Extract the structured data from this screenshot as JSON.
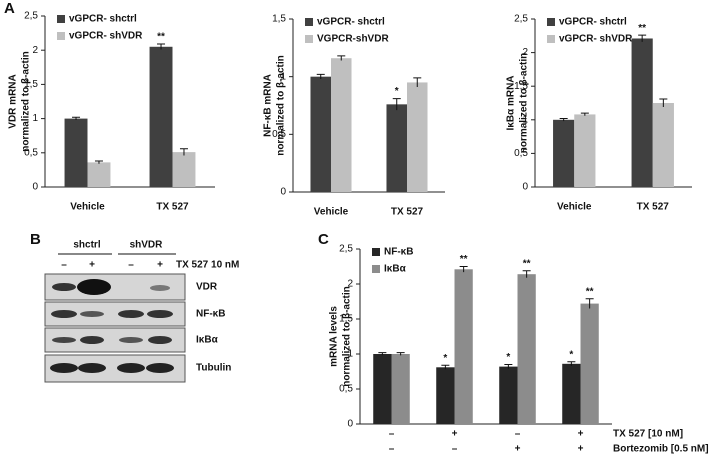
{
  "panel_labels": [
    "A",
    "B",
    "C"
  ],
  "blot": {
    "groups": [
      "shctrl",
      "shVDR"
    ],
    "lanes": [
      "–",
      "+",
      "–",
      "+"
    ],
    "treatment": "TX 527 10 nM",
    "rows": [
      "VDR",
      "NF-κB",
      "IκBα",
      "Tubulin"
    ]
  },
  "chart_data": [
    {
      "type": "bar",
      "y_label": [
        "VDR  mRNA",
        "normalized to β-actin"
      ],
      "categories": [
        "Vehicle",
        "TX 527"
      ],
      "series": [
        {
          "name": "vGPCR- shctrl",
          "color": "#404040",
          "values": [
            1.0,
            2.05
          ],
          "errors": [
            0.02,
            0.04
          ],
          "annotations": [
            null,
            "**"
          ]
        },
        {
          "name": "vGPCR- shVDR",
          "color": "#bfbfbf",
          "values": [
            0.36,
            0.51
          ],
          "errors": [
            0.02,
            0.05
          ],
          "annotations": [
            null,
            null
          ]
        }
      ],
      "ylim": [
        0,
        2.5
      ],
      "yticks": [
        0,
        {
          "value": 0.5,
          "label": "0,5"
        },
        1,
        {
          "value": 1.5,
          "label": "1,5"
        },
        2,
        {
          "value": 2.5,
          "label": "2,5"
        }
      ],
      "grid": false,
      "legend": "top-left"
    },
    {
      "type": "bar",
      "y_label": [
        "NF-κB  mRNA",
        "normalized to β-actin"
      ],
      "categories": [
        "Vehicle",
        "TX 527"
      ],
      "series": [
        {
          "name": "vGPCR- shctrl",
          "color": "#404040",
          "values": [
            1.0,
            0.76
          ],
          "errors": [
            0.02,
            0.05
          ],
          "annotations": [
            null,
            "*"
          ]
        },
        {
          "name": "VGPCR-shVDR",
          "color": "#bfbfbf",
          "values": [
            1.16,
            0.95
          ],
          "errors": [
            0.02,
            0.04
          ],
          "annotations": [
            null,
            null
          ]
        }
      ],
      "ylim": [
        0,
        1.5
      ],
      "yticks": [
        0,
        {
          "value": 0.5,
          "label": "0,5"
        },
        1,
        {
          "value": 1.5,
          "label": "1,5"
        }
      ],
      "grid": false,
      "legend": "top-left"
    },
    {
      "type": "bar",
      "y_label": [
        "IκBα  mRNA",
        "normalized to β-actin"
      ],
      "categories": [
        "Vehicle",
        "TX 527"
      ],
      "series": [
        {
          "name": "vGPCR- shctrl",
          "color": "#404040",
          "values": [
            1.0,
            2.21
          ],
          "errors": [
            0.02,
            0.05
          ],
          "annotations": [
            null,
            "**"
          ]
        },
        {
          "name": "vGPCR- shVDR",
          "color": "#bfbfbf",
          "values": [
            1.08,
            1.25
          ],
          "errors": [
            0.02,
            0.06
          ],
          "annotations": [
            null,
            null
          ]
        }
      ],
      "ylim": [
        0,
        2.5
      ],
      "yticks": [
        0,
        {
          "value": 0.5,
          "label": "0,5"
        },
        1,
        {
          "value": 1.5,
          "label": "1,5"
        },
        2,
        {
          "value": 2.5,
          "label": "2,5"
        }
      ],
      "grid": false,
      "legend": "top-left"
    },
    {
      "type": "bar",
      "y_label": [
        "mRNA levels",
        "normalized to β-actin"
      ],
      "categories": [
        null,
        null,
        null,
        null
      ],
      "series": [
        {
          "name": "NF-κB",
          "color": "#262626",
          "values": [
            1.0,
            0.81,
            0.82,
            0.86
          ],
          "errors": [
            0.02,
            0.03,
            0.03,
            0.03
          ],
          "annotations": [
            null,
            "*",
            "*",
            "*"
          ]
        },
        {
          "name": "IκBα",
          "color": "#8c8c8c",
          "values": [
            1.0,
            2.21,
            2.14,
            1.72
          ],
          "errors": [
            0.02,
            0.04,
            0.05,
            0.07
          ],
          "annotations": [
            null,
            "**",
            "**",
            "**"
          ]
        }
      ],
      "treatments": [
        {
          "name": "TX 527 [10 nM]",
          "signs": [
            "–",
            "+",
            "–",
            "+"
          ]
        },
        {
          "name": "Bortezomib [0.5 nM]",
          "signs": [
            "–",
            "–",
            "+",
            "+"
          ]
        }
      ],
      "ylim": [
        0,
        2.5
      ],
      "yticks": [
        0,
        {
          "value": 0.5,
          "label": "0,5"
        },
        1,
        {
          "value": 1.5,
          "label": "1,5"
        },
        2,
        {
          "value": 2.5,
          "label": "2,5"
        }
      ],
      "grid": false,
      "legend": "top-left"
    }
  ]
}
